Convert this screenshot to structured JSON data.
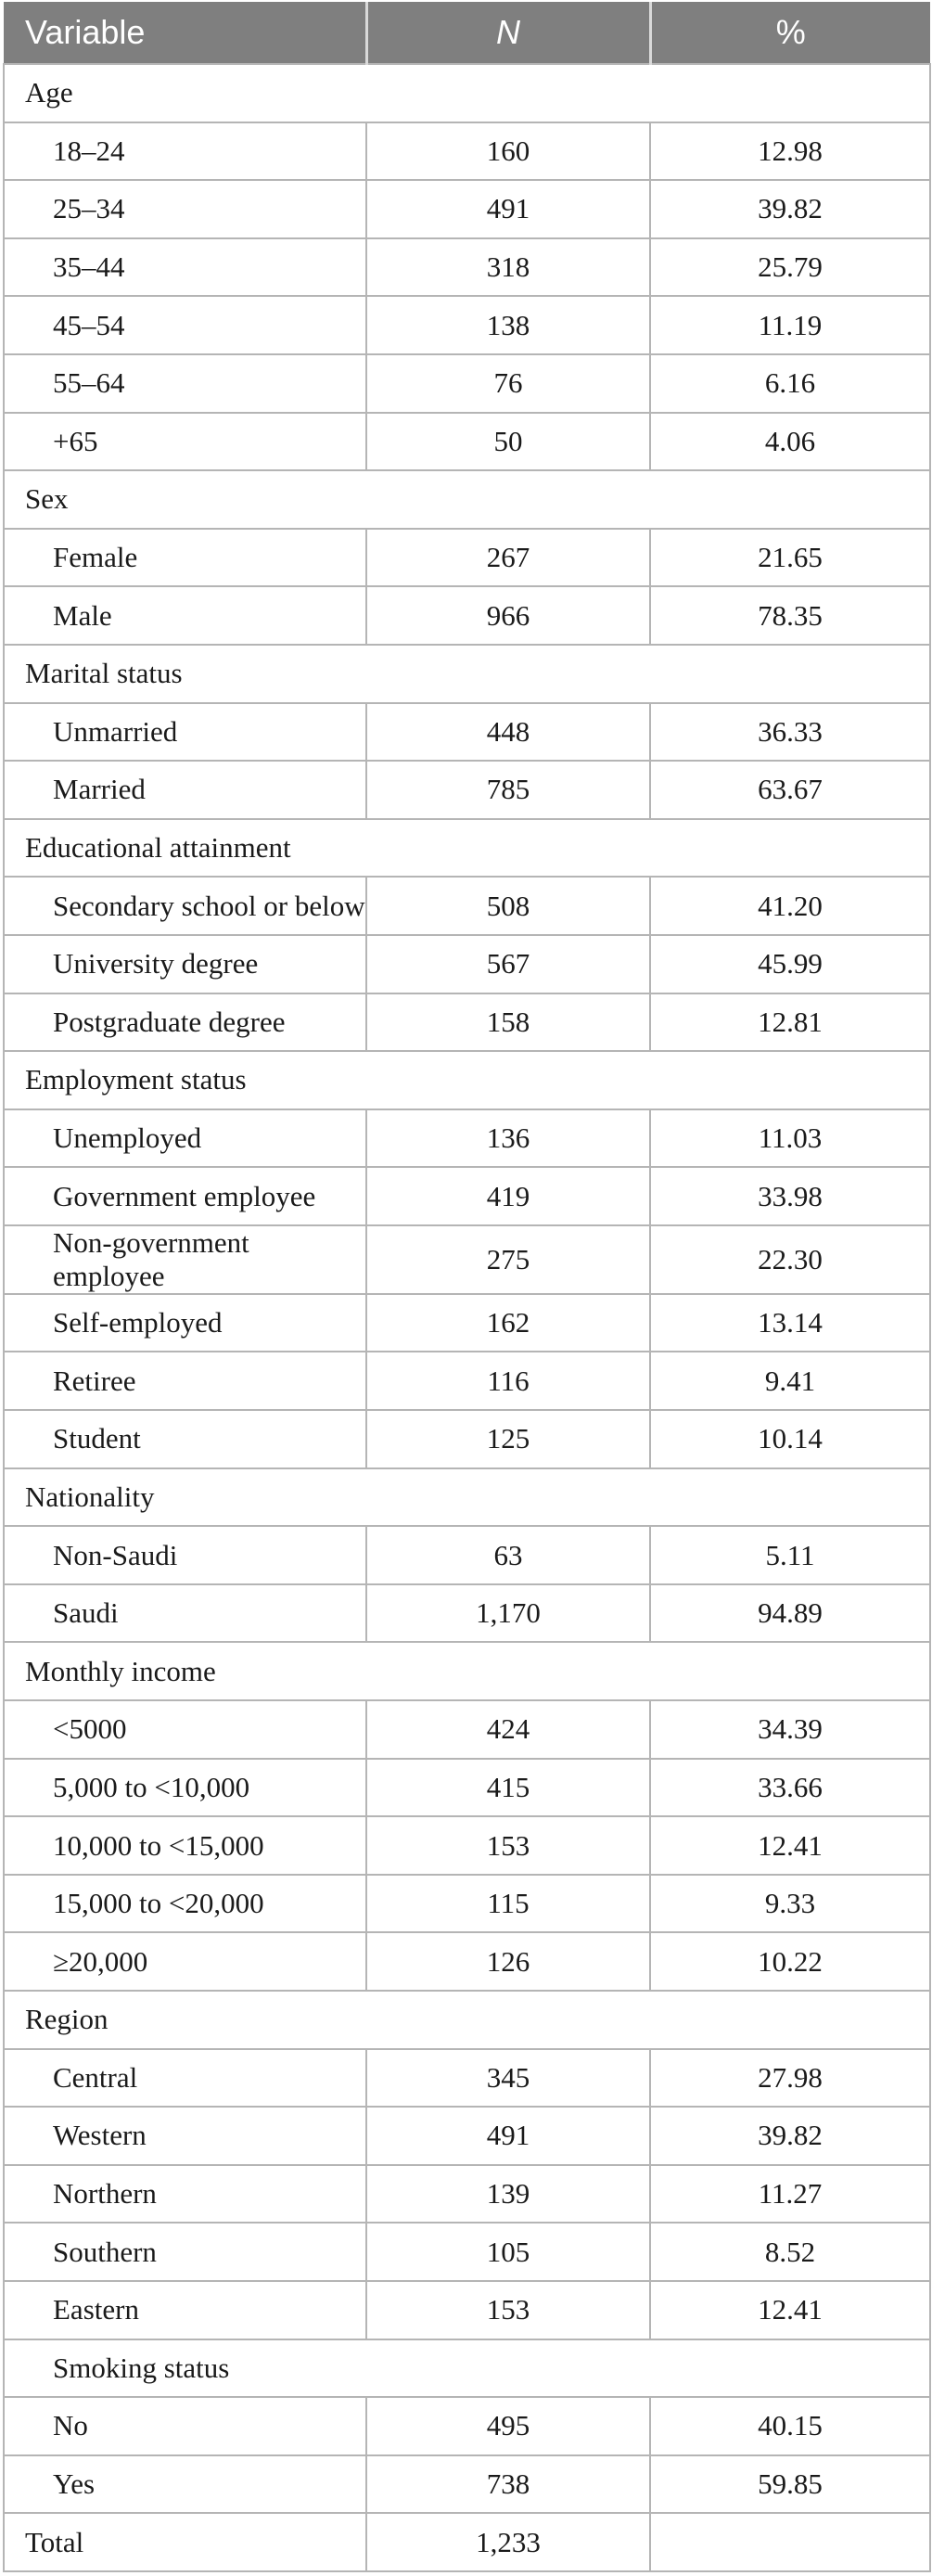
{
  "table": {
    "columns": [
      {
        "key": "variable",
        "label": "Variable"
      },
      {
        "key": "n",
        "label": "N"
      },
      {
        "key": "pct",
        "label": "%"
      }
    ],
    "rows": [
      {
        "type": "category",
        "label": "Age"
      },
      {
        "type": "data",
        "label": "18–24",
        "n": "160",
        "pct": "12.98"
      },
      {
        "type": "data",
        "label": "25–34",
        "n": "491",
        "pct": "39.82"
      },
      {
        "type": "data",
        "label": "35–44",
        "n": "318",
        "pct": "25.79"
      },
      {
        "type": "data",
        "label": "45–54",
        "n": "138",
        "pct": "11.19"
      },
      {
        "type": "data",
        "label": "55–64",
        "n": "76",
        "pct": "6.16"
      },
      {
        "type": "data",
        "label": "+65",
        "n": "50",
        "pct": "4.06"
      },
      {
        "type": "category",
        "label": "Sex"
      },
      {
        "type": "data",
        "label": "Female",
        "n": "267",
        "pct": "21.65"
      },
      {
        "type": "data",
        "label": "Male",
        "n": "966",
        "pct": "78.35"
      },
      {
        "type": "category",
        "label": "Marital status"
      },
      {
        "type": "data",
        "label": "Unmarried",
        "n": "448",
        "pct": "36.33"
      },
      {
        "type": "data",
        "label": "Married",
        "n": "785",
        "pct": "63.67"
      },
      {
        "type": "category",
        "label": "Educational attainment"
      },
      {
        "type": "data",
        "label": "Secondary school or below",
        "n": "508",
        "pct": "41.20"
      },
      {
        "type": "data",
        "label": "University degree",
        "n": "567",
        "pct": "45.99"
      },
      {
        "type": "data",
        "label": "Postgraduate degree",
        "n": "158",
        "pct": "12.81"
      },
      {
        "type": "category",
        "label": "Employment status"
      },
      {
        "type": "data",
        "label": "Unemployed",
        "n": "136",
        "pct": "11.03"
      },
      {
        "type": "data",
        "label": "Government employee",
        "n": "419",
        "pct": "33.98"
      },
      {
        "type": "data",
        "label": "Non-government employee",
        "n": "275",
        "pct": "22.30"
      },
      {
        "type": "data",
        "label": "Self-employed",
        "n": "162",
        "pct": "13.14"
      },
      {
        "type": "data",
        "label": "Retiree",
        "n": "116",
        "pct": "9.41"
      },
      {
        "type": "data",
        "label": "Student",
        "n": "125",
        "pct": "10.14"
      },
      {
        "type": "category",
        "label": "Nationality"
      },
      {
        "type": "data",
        "label": "Non-Saudi",
        "n": "63",
        "pct": "5.11"
      },
      {
        "type": "data",
        "label": "Saudi",
        "n": "1,170",
        "pct": "94.89"
      },
      {
        "type": "category",
        "label": "Monthly income"
      },
      {
        "type": "data",
        "label": "<5000",
        "n": "424",
        "pct": "34.39"
      },
      {
        "type": "data",
        "label": "5,000 to <10,000",
        "n": "415",
        "pct": "33.66"
      },
      {
        "type": "data",
        "label": "10,000 to <15,000",
        "n": "153",
        "pct": "12.41"
      },
      {
        "type": "data",
        "label": "15,000 to <20,000",
        "n": "115",
        "pct": "9.33"
      },
      {
        "type": "data",
        "label": "≥20,000",
        "n": "126",
        "pct": "10.22"
      },
      {
        "type": "category",
        "label": "Region"
      },
      {
        "type": "data",
        "label": "Central",
        "n": "345",
        "pct": "27.98"
      },
      {
        "type": "data",
        "label": "Western",
        "n": "491",
        "pct": "39.82"
      },
      {
        "type": "data",
        "label": "Northern",
        "n": "139",
        "pct": "11.27"
      },
      {
        "type": "data",
        "label": "Southern",
        "n": "105",
        "pct": "8.52"
      },
      {
        "type": "data",
        "label": "Eastern",
        "n": "153",
        "pct": "12.41"
      },
      {
        "type": "category",
        "label": "Smoking status",
        "indented": true
      },
      {
        "type": "data",
        "label": "No",
        "n": "495",
        "pct": "40.15"
      },
      {
        "type": "data",
        "label": "Yes",
        "n": "738",
        "pct": "59.85"
      },
      {
        "type": "total",
        "label": "Total",
        "n": "1,233",
        "pct": ""
      }
    ],
    "colors": {
      "header_bg": "#7f7f7f",
      "header_text": "#ffffff",
      "grid_line": "#b5b5b5",
      "header_divider": "#d9d9d9",
      "body_text": "#1a1a1a"
    }
  }
}
